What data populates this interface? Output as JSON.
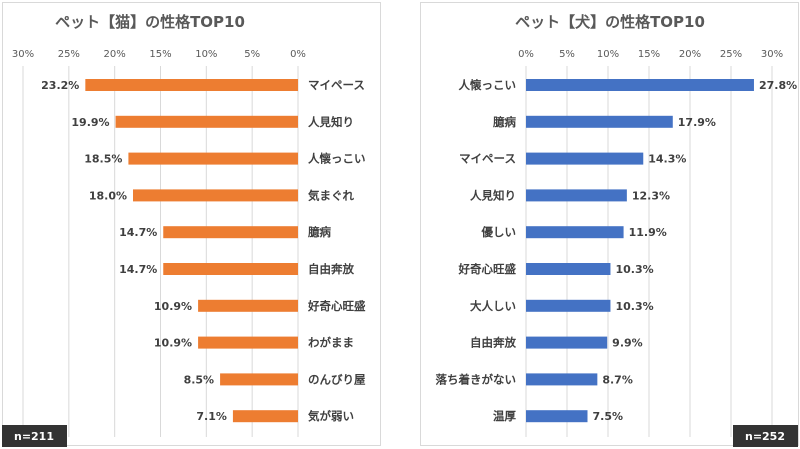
{
  "chart_data": [
    {
      "type": "bar",
      "orientation": "horizontal",
      "direction": "right-to-left",
      "title": "ペット【猫】の性格TOP10",
      "categories": [
        "マイペース",
        "人見知り",
        "人懐っこい",
        "気まぐれ",
        "臆病",
        "自由奔放",
        "好奇心旺盛",
        "わがまま",
        "のんびり屋",
        "気が弱い"
      ],
      "values": [
        23.2,
        19.9,
        18.5,
        18.0,
        14.7,
        14.7,
        10.9,
        10.9,
        8.5,
        7.1
      ],
      "value_labels": [
        "23.2%",
        "19.9%",
        "18.5%",
        "18.0%",
        "14.7%",
        "14.7%",
        "10.9%",
        "10.9%",
        "8.5%",
        "7.1%"
      ],
      "xlim": [
        0,
        30
      ],
      "ticks": [
        "0%",
        "5%",
        "10%",
        "15%",
        "20%",
        "25%",
        "30%"
      ],
      "grid": true,
      "color": "#ED7D31",
      "note": "n=211"
    },
    {
      "type": "bar",
      "orientation": "horizontal",
      "direction": "left-to-right",
      "title": "ペット【犬】の性格TOP10",
      "categories": [
        "人懐っこい",
        "臆病",
        "マイペース",
        "人見知り",
        "優しい",
        "好奇心旺盛",
        "大人しい",
        "自由奔放",
        "落ち着きがない",
        "温厚"
      ],
      "values": [
        27.8,
        17.9,
        14.3,
        12.3,
        11.9,
        10.3,
        10.3,
        9.9,
        8.7,
        7.5
      ],
      "value_labels": [
        "27.8%",
        "17.9%",
        "14.3%",
        "12.3%",
        "11.9%",
        "10.3%",
        "10.3%",
        "9.9%",
        "8.7%",
        "7.5%"
      ],
      "xlim": [
        0,
        30
      ],
      "ticks": [
        "0%",
        "5%",
        "10%",
        "15%",
        "20%",
        "25%",
        "30%"
      ],
      "grid": true,
      "color": "#4472C4",
      "note": "n=252"
    }
  ]
}
